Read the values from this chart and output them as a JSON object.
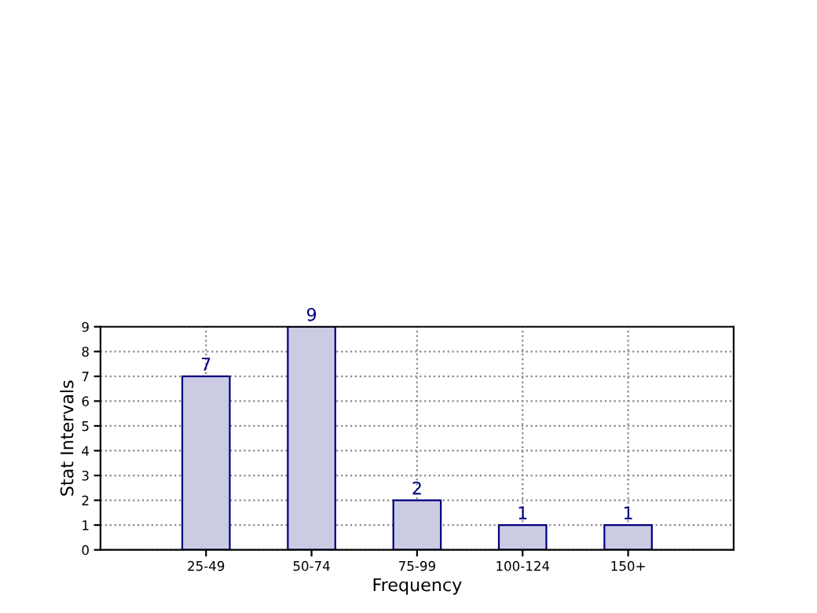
{
  "chart_data": {
    "type": "bar",
    "xlabel": "Frequency",
    "ylabel": "Stat Intervals",
    "categories": [
      "25-49",
      "50-74",
      "75-99",
      "100-124",
      "150+"
    ],
    "values": [
      7,
      9,
      2,
      1,
      1
    ],
    "color": "#cbcbe4",
    "ylim": [
      0,
      9
    ],
    "yticks": [
      0,
      1,
      2,
      3,
      4,
      5,
      6,
      7,
      8,
      9
    ],
    "grid": true,
    "data_labels": true
  }
}
